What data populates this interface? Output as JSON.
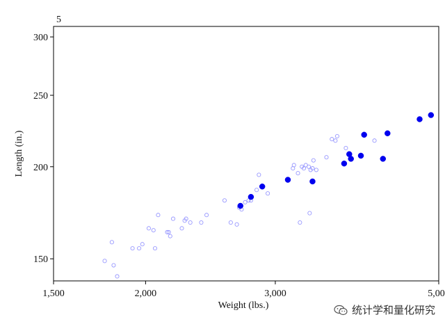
{
  "chart_data": {
    "type": "scatter",
    "title": "5",
    "xlabel": "Weight (lbs.)",
    "ylabel": "Length (in.)",
    "x_scale": "log",
    "y_scale": "log",
    "xlim": [
      1500,
      5000
    ],
    "ylim": [
      140,
      310
    ],
    "x_ticks": [
      1500,
      2000,
      3000,
      5000
    ],
    "x_tick_labels": [
      "1,500",
      "2,000",
      "3,000",
      "5,000"
    ],
    "y_ticks": [
      150,
      200,
      250,
      300
    ],
    "y_tick_labels": [
      "150",
      "200",
      "250",
      "300"
    ],
    "grid": false,
    "legend": "none",
    "colors": {
      "highlight": "#0000ee",
      "background_points": "#9999ff",
      "frame": "#000000"
    },
    "series": [
      {
        "points": [
          [
            1760,
            149
          ],
          [
            1800,
            158
          ],
          [
            1810,
            147
          ],
          [
            1830,
            142
          ],
          [
            1920,
            155
          ],
          [
            1960,
            155
          ],
          [
            1980,
            157
          ],
          [
            2020,
            165
          ],
          [
            2050,
            164
          ],
          [
            2060,
            155
          ],
          [
            2080,
            172
          ],
          [
            2140,
            163
          ],
          [
            2150,
            163
          ],
          [
            2160,
            161
          ],
          [
            2180,
            170
          ],
          [
            2240,
            165
          ],
          [
            2260,
            169
          ],
          [
            2270,
            170
          ],
          [
            2300,
            168
          ],
          [
            2380,
            168
          ],
          [
            2420,
            172
          ],
          [
            2560,
            180
          ],
          [
            2610,
            168
          ],
          [
            2660,
            167
          ],
          [
            2680,
            176
          ],
          [
            2700,
            175
          ],
          [
            2730,
            179
          ],
          [
            2760,
            180
          ],
          [
            2780,
            180
          ],
          [
            2830,
            186
          ],
          [
            2850,
            195
          ],
          [
            2930,
            184
          ],
          [
            3170,
            199
          ],
          [
            3180,
            201
          ],
          [
            3220,
            196
          ],
          [
            3240,
            168
          ],
          [
            3260,
            200
          ],
          [
            3280,
            199
          ],
          [
            3300,
            201
          ],
          [
            3330,
            200
          ],
          [
            3340,
            173
          ],
          [
            3350,
            198
          ],
          [
            3370,
            199
          ],
          [
            3380,
            204
          ],
          [
            3410,
            198
          ],
          [
            3520,
            206
          ],
          [
            3580,
            218
          ],
          [
            3620,
            217
          ],
          [
            3640,
            220
          ],
          [
            3740,
            212
          ],
          [
            4090,
            217
          ]
        ]
      },
      {
        "points": [
          [
            2690,
            177
          ],
          [
            2780,
            182
          ],
          [
            2880,
            188
          ],
          [
            3120,
            192
          ],
          [
            3370,
            191
          ],
          [
            3720,
            202
          ],
          [
            3780,
            208
          ],
          [
            3800,
            205
          ],
          [
            3920,
            207
          ],
          [
            3960,
            221
          ],
          [
            4200,
            205
          ],
          [
            4260,
            222
          ],
          [
            4710,
            232
          ],
          [
            4880,
            235
          ]
        ]
      }
    ]
  },
  "watermark": {
    "icon": "wechat-icon",
    "text": "统计学和量化研究"
  }
}
